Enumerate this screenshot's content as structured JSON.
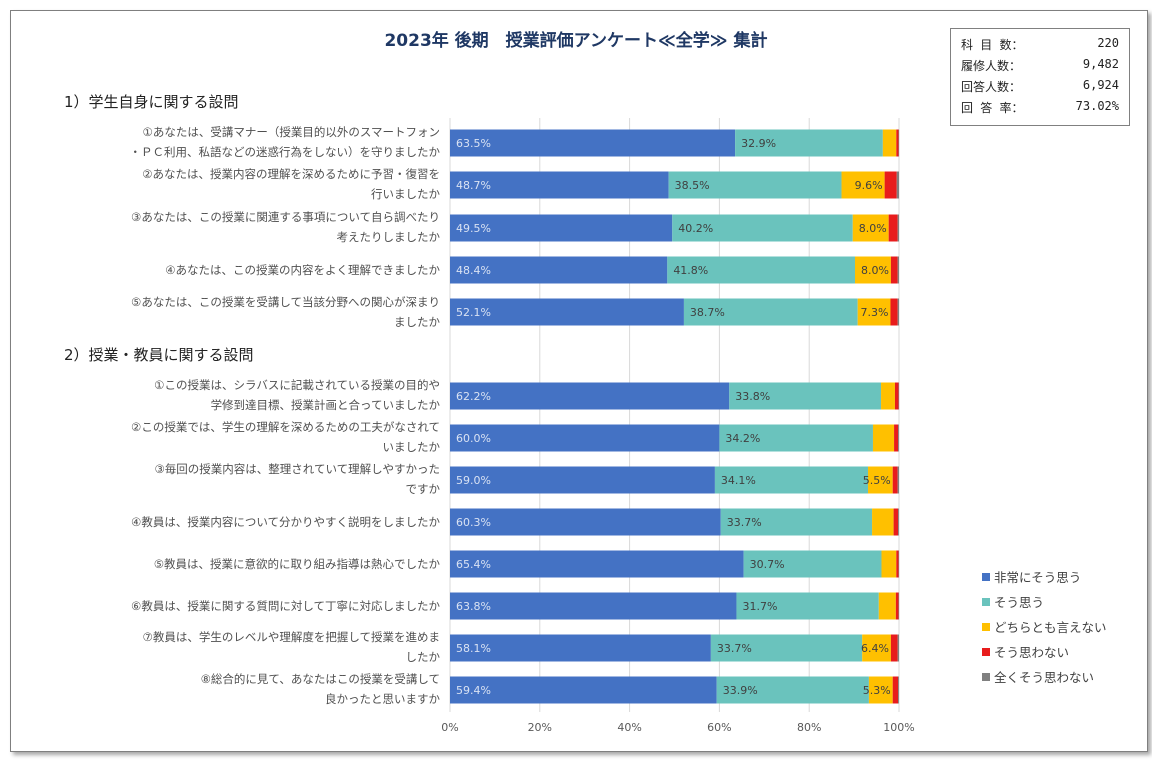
{
  "title": "2023年 後期　授業評価アンケート≪全学≫ 集計",
  "stats": [
    {
      "label": "科 目 数：",
      "value": "220"
    },
    {
      "label": "履修人数：",
      "value": "9,482"
    },
    {
      "label": "回答人数：",
      "value": "6,924"
    },
    {
      "label": "回 答 率：",
      "value": "73.02%"
    }
  ],
  "sections": [
    {
      "label": "1）学生自身に関する設問"
    },
    {
      "label": "2）授業・教員に関する設問"
    }
  ],
  "questions": [
    "①あなたは、受講マナー（授業目的以外のスマートフォン\n・ＰＣ利用、私語などの迷惑行為をしない）を守りましたか",
    "②あなたは、授業内容の理解を深めるために予習・復習を\n行いましたか",
    "③あなたは、この授業に関連する事項について自ら調べたり\n考えたりしましたか",
    "④あなたは、この授業の内容をよく理解できましたか",
    "⑤あなたは、この授業を受講して当該分野への関心が深まり\nましたか",
    "①この授業は、シラバスに記載されている授業の目的や\n学修到達目標、授業計画と合っていましたか",
    "②この授業では、学生の理解を深めるための工夫がなされて\nいましたか",
    "③毎回の授業内容は、整理されていて理解しやすかった\nですか",
    "④教員は、授業内容について分かりやすく説明をしましたか",
    "⑤教員は、授業に意欲的に取り組み指導は熱心でしたか",
    "⑥教員は、授業に関する質問に対して丁寧に対応しましたか",
    "⑦教員は、学生のレベルや理解度を把握して授業を進めま\nしたか",
    "⑧総合的に見て、あなたはこの授業を受講して\n良かったと思いますか"
  ],
  "chart_data": {
    "type": "bar",
    "orientation": "horizontal",
    "stacked": true,
    "percent": true,
    "xlim": [
      0,
      100
    ],
    "xticks": [
      "0%",
      "20%",
      "40%",
      "60%",
      "80%",
      "100%"
    ],
    "grid": true,
    "legend_position": "right",
    "series": [
      {
        "name": "非常にそう思う",
        "color": "#4472c4",
        "values": [
          63.5,
          48.7,
          49.5,
          48.4,
          52.1,
          62.2,
          60.0,
          59.0,
          60.3,
          65.4,
          63.8,
          58.1,
          59.4
        ],
        "labels": [
          "63.5%",
          "48.7%",
          "49.5%",
          "48.4%",
          "52.1%",
          "62.2%",
          "60.0%",
          "59.0%",
          "60.3%",
          "65.4%",
          "63.8%",
          "58.1%",
          "59.4%"
        ]
      },
      {
        "name": "そう思う",
        "color": "#6ac3bd",
        "values": [
          32.9,
          38.5,
          40.2,
          41.8,
          38.7,
          33.8,
          34.2,
          34.1,
          33.7,
          30.7,
          31.7,
          33.7,
          33.9
        ],
        "labels": [
          "32.9%",
          "38.5%",
          "40.2%",
          "41.8%",
          "38.7%",
          "33.8%",
          "34.2%",
          "34.1%",
          "33.7%",
          "30.7%",
          "31.7%",
          "33.7%",
          "33.9%"
        ]
      },
      {
        "name": "どちらとも言えない",
        "color": "#ffc000",
        "values": [
          3.0,
          9.6,
          8.0,
          8.0,
          7.3,
          3.1,
          4.7,
          5.5,
          4.8,
          3.3,
          3.8,
          6.4,
          5.3
        ],
        "labels": [
          "",
          "9.6%",
          "8.0%",
          "8.0%",
          "7.3%",
          "",
          "",
          "5.5%",
          "",
          "",
          "",
          "6.4%",
          "5.3%"
        ]
      },
      {
        "name": "そう思わない",
        "color": "#e81c1c",
        "values": [
          0.5,
          2.7,
          2.0,
          1.5,
          1.6,
          0.8,
          0.9,
          1.1,
          1.0,
          0.5,
          0.6,
          1.5,
          1.2
        ],
        "labels": [
          "",
          "",
          "",
          "",
          "",
          "",
          "",
          "",
          "",
          "",
          "",
          "",
          ""
        ]
      },
      {
        "name": "全くそう思わない",
        "color": "#808080",
        "values": [
          0.1,
          0.5,
          0.3,
          0.3,
          0.3,
          0.1,
          0.2,
          0.3,
          0.2,
          0.1,
          0.1,
          0.3,
          0.2
        ],
        "labels": [
          "",
          "",
          "",
          "",
          "",
          "",
          "",
          "",
          "",
          "",
          "",
          "",
          ""
        ]
      }
    ]
  }
}
